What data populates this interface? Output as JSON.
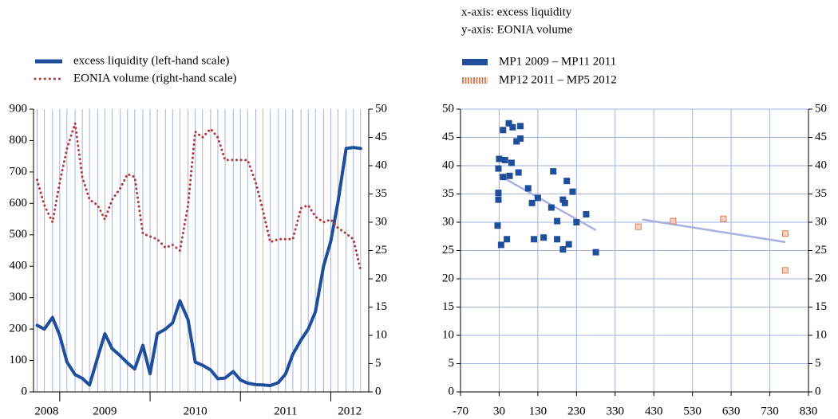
{
  "chart_data": [
    {
      "type": "line",
      "legend": "top-left",
      "x": [
        2008.75,
        2008.83,
        2008.92,
        2009.0,
        2009.08,
        2009.17,
        2009.25,
        2009.33,
        2009.42,
        2009.5,
        2009.58,
        2009.67,
        2009.75,
        2009.83,
        2009.92,
        2010.0,
        2010.08,
        2010.17,
        2010.25,
        2010.33,
        2010.42,
        2010.5,
        2010.58,
        2010.67,
        2010.75,
        2010.83,
        2010.92,
        2011.0,
        2011.08,
        2011.17,
        2011.25,
        2011.33,
        2011.42,
        2011.5,
        2011.58,
        2011.67,
        2011.75,
        2011.83,
        2011.92,
        2012.0,
        2012.08,
        2012.17,
        2012.25,
        2012.33
      ],
      "series": [
        {
          "name": "excess liquidity (left-hand scale)",
          "color": "#1f4e9c",
          "style": "solid",
          "values": [
            212,
            200,
            237,
            180,
            95,
            55,
            43,
            22,
            110,
            185,
            138,
            115,
            92,
            73,
            148,
            58,
            185,
            200,
            220,
            290,
            230,
            95,
            85,
            70,
            42,
            44,
            65,
            38,
            28,
            23,
            22,
            20,
            30,
            57,
            120,
            165,
            200,
            255,
            400,
            480,
            605,
            775,
            778,
            775
          ]
        },
        {
          "name": "EONIA volume (right-hand scale)",
          "color": "#b03a3a",
          "style": "dotted",
          "axis": "y2",
          "values": [
            37.5,
            33,
            30,
            37,
            43,
            47.5,
            38,
            34,
            33,
            30.5,
            34,
            36,
            38.5,
            38,
            28,
            27.5,
            27,
            25.5,
            26,
            25,
            33,
            46,
            45,
            46.5,
            45,
            41,
            41,
            41,
            41,
            37,
            32,
            26.5,
            27,
            27,
            27,
            32.5,
            33,
            31,
            30,
            30.5,
            29,
            28,
            27,
            21.5
          ]
        }
      ],
      "xlim": [
        2008.71,
        2012.42
      ],
      "xticks": [
        2008,
        2009,
        2010,
        2011,
        2012
      ],
      "ylim": [
        0,
        900
      ],
      "yticks": [
        0,
        100,
        200,
        300,
        400,
        500,
        600,
        700,
        800,
        900
      ],
      "y2lim": [
        0,
        50
      ],
      "y2ticks": [
        0,
        5,
        10,
        15,
        20,
        25,
        30,
        35,
        40,
        45,
        50
      ],
      "grid": "x"
    },
    {
      "type": "scatter",
      "legend": "top-left",
      "annotations": [
        "x-axis: excess liquidity",
        "y-axis: EONIA volume"
      ],
      "series": [
        {
          "name": "MP1 2009 – MP11 2011",
          "color": "#1f4e9c",
          "fill": "#1f4e9c",
          "x": [
            26,
            28,
            28,
            28,
            30,
            35,
            40,
            40,
            45,
            50,
            55,
            57,
            62,
            65,
            75,
            80,
            85,
            85,
            105,
            115,
            120,
            130,
            145,
            165,
            170,
            180,
            180,
            195,
            195,
            200,
            205,
            210,
            220,
            230,
            255,
            280
          ],
          "values": [
            29.4,
            34,
            35.2,
            39.5,
            41.2,
            26,
            46.3,
            38,
            41,
            27,
            47.5,
            38.2,
            40.5,
            46.8,
            44.3,
            38.8,
            44.8,
            47,
            36,
            33.4,
            27,
            34.3,
            27.3,
            32.6,
            39,
            30.2,
            27,
            34,
            25.2,
            33.4,
            37.3,
            26.1,
            35.4,
            30,
            31.4,
            24.7
          ]
        },
        {
          "name": "MP12 2011 – MP5 2012",
          "color": "#d9805a",
          "fill": "#f6d2c0",
          "x": [
            390,
            480,
            610,
            770,
            770
          ],
          "values": [
            29.2,
            30.2,
            30.6,
            28,
            21.5
          ]
        }
      ],
      "trend_lines": [
        {
          "color": "#a7b0e0",
          "x": [
            30,
            280
          ],
          "values": [
            38.3,
            28.6
          ]
        },
        {
          "color": "#a7b0e0",
          "x": [
            400,
            770
          ],
          "values": [
            30.5,
            26.5
          ]
        }
      ],
      "xlim": [
        -70,
        830
      ],
      "xticks": [
        -70,
        30,
        130,
        230,
        330,
        430,
        530,
        630,
        730,
        830
      ],
      "ylim": [
        0,
        50
      ],
      "yticks": [
        0,
        5,
        10,
        15,
        20,
        25,
        30,
        35,
        40,
        45,
        50
      ],
      "y_labels_both_sides": true,
      "grid": "both"
    }
  ]
}
